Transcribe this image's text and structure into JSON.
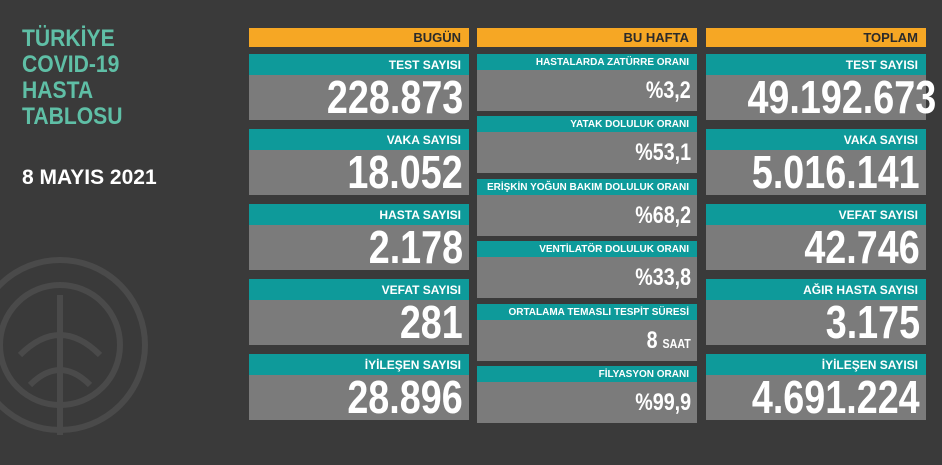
{
  "title_lines": [
    "TÜRKİYE",
    "COVID-19",
    "HASTA",
    "TABLOSU"
  ],
  "date": "8 MAYIS 2021",
  "columns": [
    {
      "header": "BUGÜN",
      "items": [
        {
          "label": "TEST SAYISI",
          "value": "228.873"
        },
        {
          "label": "VAKA SAYISI",
          "value": "18.052"
        },
        {
          "label": "HASTA SAYISI",
          "value": "2.178"
        },
        {
          "label": "VEFAT SAYISI",
          "value": "281"
        },
        {
          "label": "İYİLEŞEN SAYISI",
          "value": "28.896"
        }
      ]
    },
    {
      "header": "BU HAFTA",
      "items": [
        {
          "label": "HASTALARDA ZATÜRRE ORANI",
          "value": "%3,2"
        },
        {
          "label": "YATAK DOLULUK ORANI",
          "value": "%53,1"
        },
        {
          "label": "ERİŞKİN YOĞUN BAKIM DOLULUK ORANI",
          "value": "%68,2"
        },
        {
          "label": "VENTİLATÖR DOLULUK ORANI",
          "value": "%33,8"
        },
        {
          "label": "ORTALAMA TEMASLI TESPİT SÜRESİ",
          "value": "8",
          "unit": "SAAT"
        },
        {
          "label": "FİLYASYON ORANI",
          "value": "%99,9"
        }
      ]
    },
    {
      "header": "TOPLAM",
      "items": [
        {
          "label": "TEST SAYISI",
          "value": "49.192.673"
        },
        {
          "label": "VAKA SAYISI",
          "value": "5.016.141"
        },
        {
          "label": "VEFAT SAYISI",
          "value": "42.746"
        },
        {
          "label": "AĞIR HASTA SAYISI",
          "value": "3.175"
        },
        {
          "label": "İYİLEŞEN SAYISI",
          "value": "4.691.224"
        }
      ]
    }
  ]
}
